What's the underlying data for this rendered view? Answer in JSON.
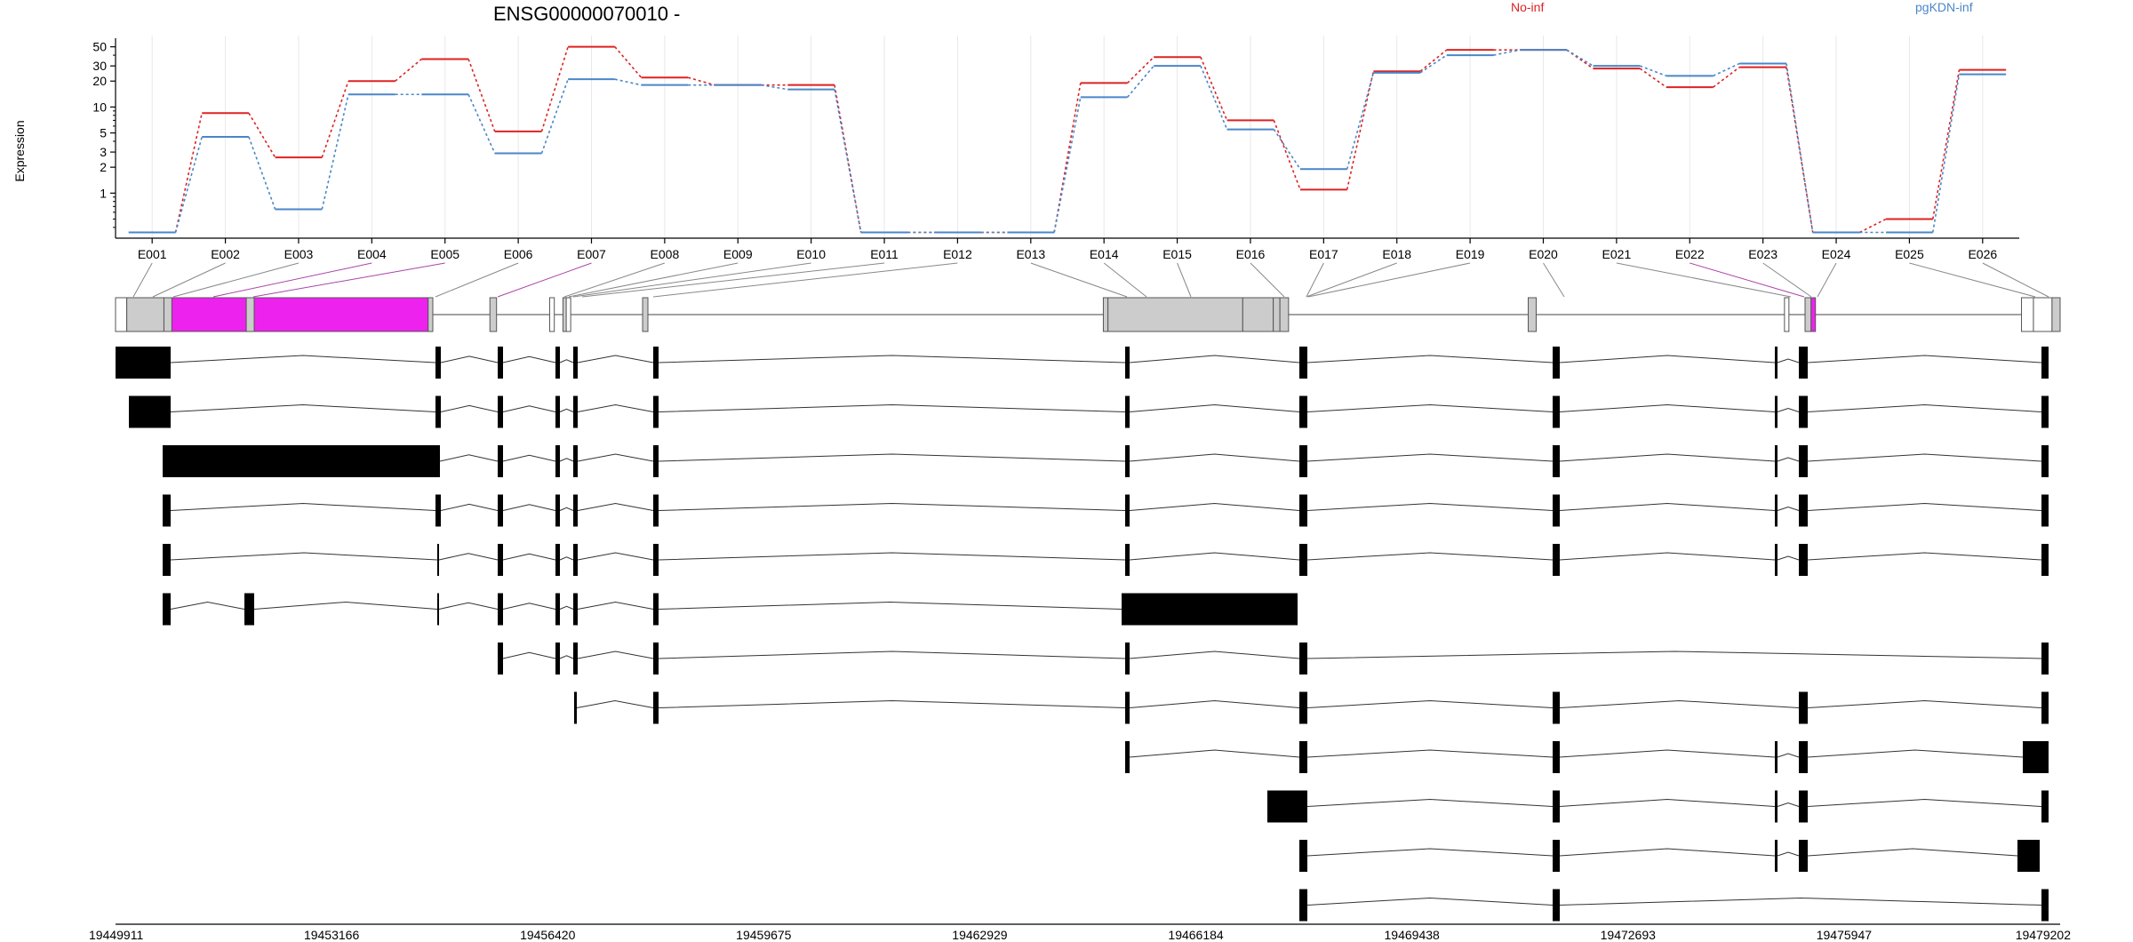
{
  "chart_data": {
    "type": "line",
    "title": "ENSG00000070010 -",
    "ylabel": "Expression",
    "y_scale": "log",
    "y_ticks": [
      1,
      2,
      3,
      5,
      10,
      20,
      30,
      50
    ],
    "ylim": [
      0.3,
      60
    ],
    "categories": [
      "E001",
      "E002",
      "E003",
      "E004",
      "E005",
      "E006",
      "E007",
      "E008",
      "E009",
      "E010",
      "E011",
      "E012",
      "E013",
      "E014",
      "E015",
      "E016",
      "E017",
      "E018",
      "E019",
      "E020",
      "E021",
      "E022",
      "E023",
      "E024",
      "E025",
      "E026"
    ],
    "series": [
      {
        "name": "No-inf",
        "color": "#dd2222",
        "values": [
          0.35,
          8.5,
          2.6,
          20,
          36,
          5.2,
          50,
          22,
          18,
          18,
          0.35,
          0.35,
          0.35,
          19,
          38,
          7,
          1.1,
          26,
          46,
          46,
          28,
          17,
          29,
          0.35,
          0.5,
          27
        ]
      },
      {
        "name": "pgKDN-inf",
        "color": "#4a86c8",
        "values": [
          0.35,
          4.5,
          0.65,
          14,
          14,
          2.9,
          21,
          18,
          18,
          16,
          0.35,
          0.35,
          0.35,
          13,
          30,
          5.5,
          1.9,
          25,
          40,
          46,
          30,
          23,
          32,
          0.35,
          0.35,
          24
        ]
      }
    ],
    "gene_model": {
      "coord_range": [
        19449911,
        19479202
      ],
      "coord_ticks": [
        19449911,
        19453166,
        19456420,
        19459675,
        19462929,
        19466184,
        19469438,
        19472693,
        19475947,
        19479202
      ],
      "highlight_color": "#ee22ee"
    }
  }
}
